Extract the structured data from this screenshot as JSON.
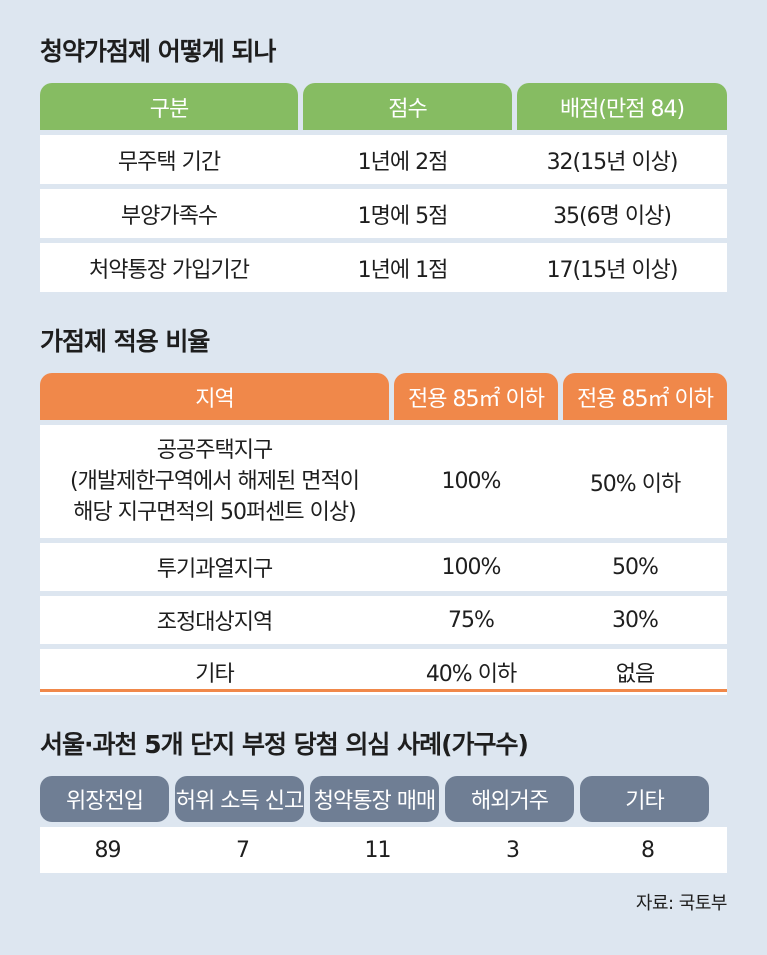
{
  "section1": {
    "title": "청약가점제 어떻게 되나",
    "headers": [
      "구분",
      "점수",
      "배점(만점 84)"
    ],
    "rows": [
      [
        "무주택 기간",
        "1년에 2점",
        "32(15년 이상)"
      ],
      [
        "부양가족수",
        "1명에 5점",
        "35(6명 이상)"
      ],
      [
        "처약통장 가입기간",
        "1년에 1점",
        "17(15년 이상)"
      ]
    ]
  },
  "section2": {
    "title": "가점제 적용 비율",
    "headers": [
      "지역",
      "전용 85㎡ 이하",
      "전용 85㎡ 이하"
    ],
    "rows": [
      {
        "region_lines": [
          "공공주택지구",
          "(개발제한구역에서 해제된 면적이",
          "해당 지구면적의 50퍼센트 이상)"
        ],
        "a": "100%",
        "b": "50% 이하"
      },
      {
        "region": "투기과열지구",
        "a": "100%",
        "b": "50%"
      },
      {
        "region": "조정대상지역",
        "a": "75%",
        "b": "30%"
      },
      {
        "region": "기타",
        "a": "40% 이하",
        "b": "없음"
      }
    ]
  },
  "section3": {
    "title": "서울·과천 5개 단지 부정 당첨 의심 사례(가구수)",
    "headers": [
      "위장전입",
      "허위 소득 신고",
      "청약통장 매매",
      "해외거주",
      "기타"
    ],
    "values": [
      "89",
      "7",
      "11",
      "3",
      "8"
    ]
  },
  "source": "자료: 국토부",
  "colors": {
    "background": "#dde6f0",
    "green_header": "#86bc62",
    "orange_header": "#f0884a",
    "slate_header": "#6f7e94"
  }
}
